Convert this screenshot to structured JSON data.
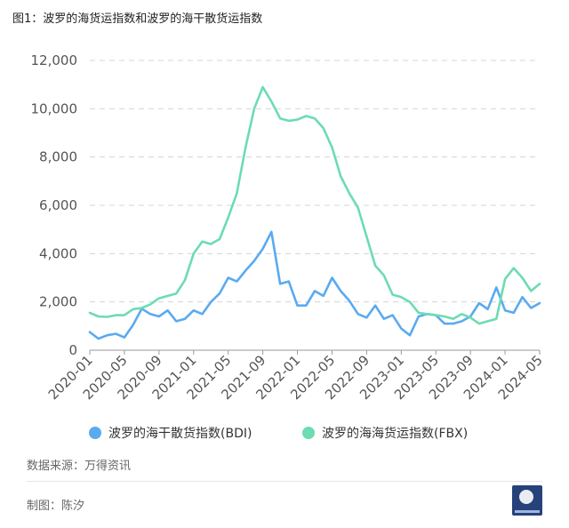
{
  "figure_title": "图1：波罗的海货运指数和波罗的海干散货运指数",
  "source": "数据来源：万得资讯",
  "author": "制图：陈汐",
  "chart_data": {
    "type": "line",
    "title": "",
    "xlabel": "",
    "ylabel": "",
    "ylim": [
      0,
      12000
    ],
    "y_ticks": [
      "0",
      "2,000",
      "4,000",
      "6,000",
      "8,000",
      "10,000",
      "12,000"
    ],
    "x_tick_labels": [
      "2020-01",
      "2020-05",
      "2020-09",
      "2021-01",
      "2021-05",
      "2021-09",
      "2022-01",
      "2022-05",
      "2022-09",
      "2023-01",
      "2023-05",
      "2023-09",
      "2024-01",
      "2024-05"
    ],
    "grid": true,
    "legend_position": "bottom",
    "x": [
      "2020-01",
      "2020-02",
      "2020-03",
      "2020-04",
      "2020-05",
      "2020-06",
      "2020-07",
      "2020-08",
      "2020-09",
      "2020-10",
      "2020-11",
      "2020-12",
      "2021-01",
      "2021-02",
      "2021-03",
      "2021-04",
      "2021-05",
      "2021-06",
      "2021-07",
      "2021-08",
      "2021-09",
      "2021-10",
      "2021-11",
      "2021-12",
      "2022-01",
      "2022-02",
      "2022-03",
      "2022-04",
      "2022-05",
      "2022-06",
      "2022-07",
      "2022-08",
      "2022-09",
      "2022-10",
      "2022-11",
      "2022-12",
      "2023-01",
      "2023-02",
      "2023-03",
      "2023-04",
      "2023-05",
      "2023-06",
      "2023-07",
      "2023-08",
      "2023-09",
      "2023-10",
      "2023-11",
      "2023-12",
      "2024-01",
      "2024-02",
      "2024-03",
      "2024-04",
      "2024-05"
    ],
    "series": [
      {
        "name": "波罗的海干散货指数(BDI)",
        "color": "#5aaaf0",
        "values": [
          750,
          480,
          620,
          680,
          530,
          1050,
          1720,
          1500,
          1400,
          1650,
          1200,
          1300,
          1650,
          1500,
          2000,
          2350,
          3000,
          2850,
          3300,
          3700,
          4200,
          4900,
          2750,
          2850,
          1850,
          1850,
          2450,
          2250,
          3000,
          2450,
          2050,
          1500,
          1350,
          1850,
          1300,
          1450,
          900,
          620,
          1400,
          1500,
          1450,
          1100,
          1100,
          1200,
          1400,
          1950,
          1700,
          2600,
          1650,
          1550,
          2200,
          1750,
          1950
        ]
      },
      {
        "name": "波罗的海海货运指数(FBX)",
        "color": "#6cdcb2",
        "values": [
          1550,
          1400,
          1380,
          1450,
          1450,
          1700,
          1750,
          1900,
          2150,
          2250,
          2350,
          2900,
          4000,
          4500,
          4400,
          4600,
          5500,
          6500,
          8400,
          10000,
          10900,
          10300,
          9600,
          9500,
          9550,
          9700,
          9600,
          9200,
          8400,
          7200,
          6500,
          5900,
          4700,
          3500,
          3100,
          2300,
          2200,
          2000,
          1550,
          1500,
          1450,
          1400,
          1300,
          1500,
          1350,
          1100,
          1200,
          1300,
          2950,
          3400,
          3000,
          2450,
          2750
        ]
      }
    ]
  }
}
